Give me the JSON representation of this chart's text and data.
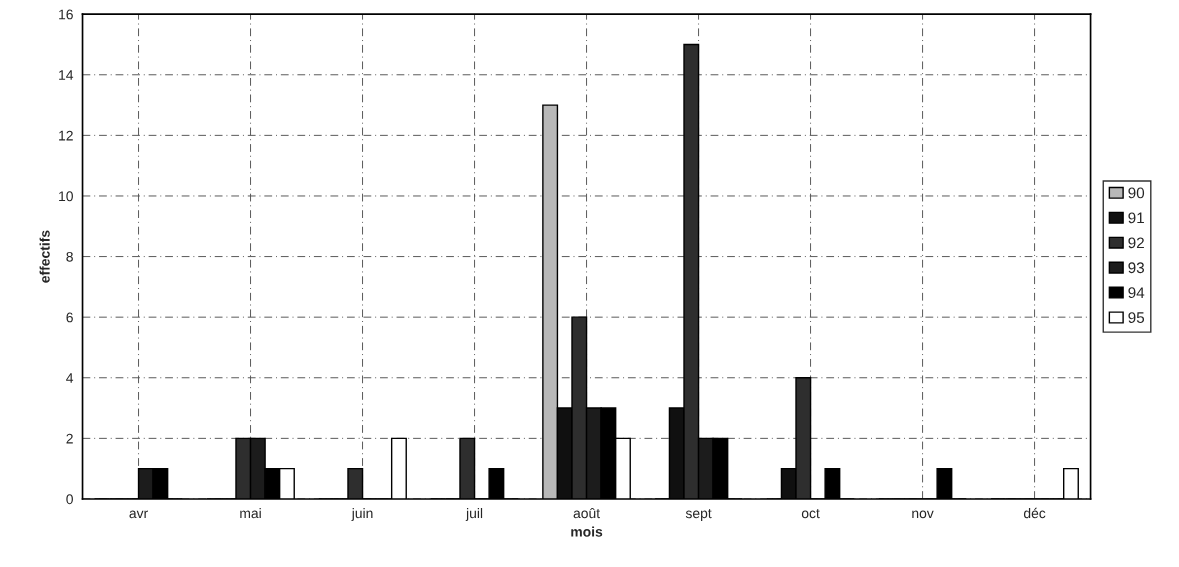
{
  "chart_data": {
    "type": "bar",
    "xlabel": "mois",
    "ylabel": "effectifs",
    "categories": [
      "avr",
      "mai",
      "juin",
      "juil",
      "août",
      "sept",
      "oct",
      "nov",
      "déc"
    ],
    "series": [
      {
        "name": "90",
        "color": "#b8b8b8",
        "values": [
          0,
          0,
          0,
          0,
          13,
          0,
          0,
          0,
          0
        ]
      },
      {
        "name": "91",
        "color": "#101010",
        "values": [
          0,
          0,
          0,
          0,
          3,
          3,
          1,
          0,
          0
        ]
      },
      {
        "name": "92",
        "color": "#2e2e2e",
        "values": [
          0,
          2,
          1,
          2,
          6,
          15,
          4,
          0,
          0
        ]
      },
      {
        "name": "93",
        "color": "#1c1c1c",
        "values": [
          1,
          2,
          0,
          0,
          3,
          2,
          0,
          0,
          0
        ]
      },
      {
        "name": "94",
        "color": "#000000",
        "values": [
          1,
          1,
          0,
          1,
          3,
          2,
          1,
          1,
          0
        ]
      },
      {
        "name": "95",
        "color": "#ffffff",
        "values": [
          0,
          1,
          2,
          0,
          2,
          0,
          0,
          0,
          1
        ]
      }
    ],
    "ylim": [
      0,
      16
    ],
    "yticks": [
      0,
      2,
      4,
      6,
      8,
      10,
      12,
      14,
      16
    ],
    "grid": true,
    "legend": "right"
  }
}
